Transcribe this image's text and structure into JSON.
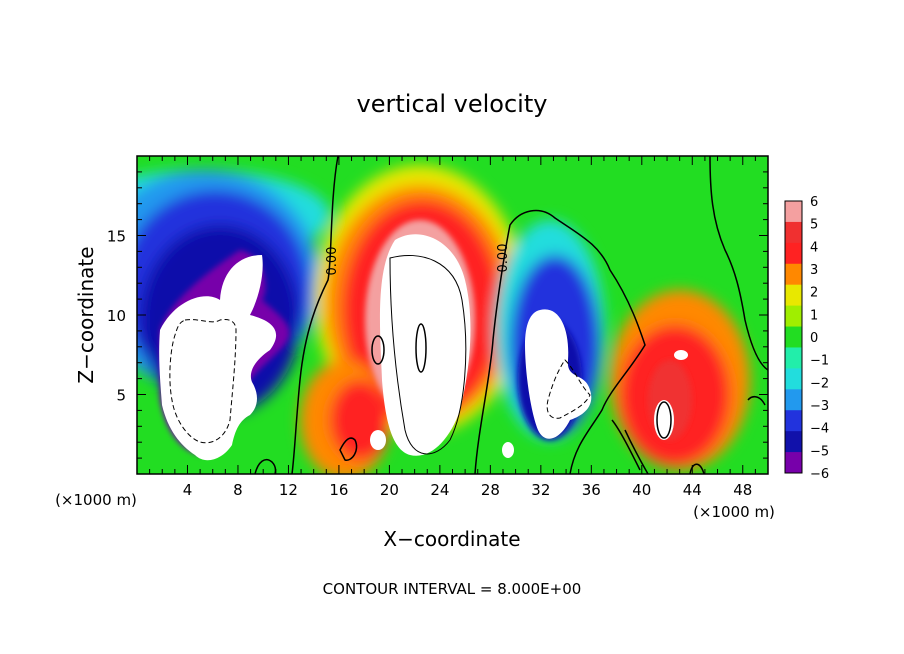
{
  "chart_data": {
    "type": "heatmap",
    "title": "vertical velocity",
    "xlabel": "X−coordinate",
    "ylabel": "Z−coordinate",
    "x_unit_left": "(×1000 m)",
    "x_unit_right": "(×1000 m)",
    "footer": "CONTOUR INTERVAL = 8.000E+00",
    "xlim": [
      0,
      50
    ],
    "ylim": [
      0,
      20
    ],
    "x_ticks": [
      4,
      8,
      12,
      16,
      20,
      24,
      28,
      32,
      36,
      40,
      44,
      48
    ],
    "x_tick_labels": [
      "4",
      "8",
      "12",
      "16",
      "20",
      "24",
      "28",
      "32",
      "36",
      "40",
      "44",
      "48"
    ],
    "y_ticks": [
      5,
      10,
      15
    ],
    "y_tick_labels": [
      "5",
      "10",
      "15"
    ],
    "colorbar": {
      "levels": [
        6,
        5,
        4,
        3,
        2,
        1,
        0,
        -1,
        -2,
        -3,
        -4,
        -5,
        -6
      ],
      "labels": [
        "6",
        "5",
        "4",
        "3",
        "2",
        "1",
        "0",
        "−1",
        "−2",
        "−3",
        "−4",
        "−5",
        "−6"
      ],
      "colors": [
        "#f4a0a0",
        "#f03030",
        "#ff2222",
        "#ff8800",
        "#e8e800",
        "#a0ee00",
        "#22dd22",
        "#22eeaa",
        "#22dddd",
        "#2299ee",
        "#2233dd",
        "#1111aa",
        "#7700aa"
      ]
    },
    "contour_labels": [
      {
        "x": 15.6,
        "z": 13.0,
        "text": "0.00"
      },
      {
        "x": 29.3,
        "z": 13.6,
        "text": "0.00"
      }
    ],
    "features": [
      {
        "x": 8,
        "z": 8,
        "value": -6
      },
      {
        "x": 22,
        "z": 11,
        "value": 6
      },
      {
        "x": 32.5,
        "z": 5,
        "value": -6
      },
      {
        "x": 43,
        "z": 5,
        "value": 5
      }
    ]
  }
}
